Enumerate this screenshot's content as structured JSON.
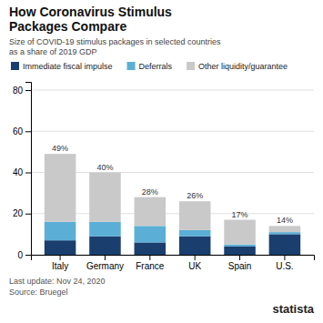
{
  "chart_data": {
    "type": "bar",
    "title": "How Coronavirus Stimulus\nPackages Compare",
    "subtitle": "Size of COVID-19 stimulus packages in selected countries\nas a share of 2019 GDP",
    "categories": [
      "Italy",
      "Germany",
      "France",
      "UK",
      "Spain",
      "U.S."
    ],
    "series": [
      {
        "name": "Immediate fiscal impulse",
        "color": "#1a3f6f",
        "values": [
          7,
          9,
          6,
          9,
          4,
          10
        ]
      },
      {
        "name": "Deferrals",
        "color": "#5bafd6",
        "values": [
          9,
          7,
          8,
          3,
          1,
          1
        ]
      },
      {
        "name": "Other liquidity/guarantee",
        "color": "#c9c9c9",
        "values": [
          33,
          24,
          14,
          14,
          12,
          3
        ]
      }
    ],
    "totals": [
      49,
      40,
      28,
      26,
      17,
      14
    ],
    "total_labels": [
      "49%",
      "40%",
      "28%",
      "26%",
      "17%",
      "14%"
    ],
    "stacked": true,
    "ylim": [
      0,
      84
    ],
    "yticks": [
      0,
      20,
      40,
      60,
      80
    ],
    "grid": true,
    "legend": "top",
    "annotations": [
      "Last update: Nov 24, 2020\nSource: Bruegel",
      "statista"
    ]
  }
}
